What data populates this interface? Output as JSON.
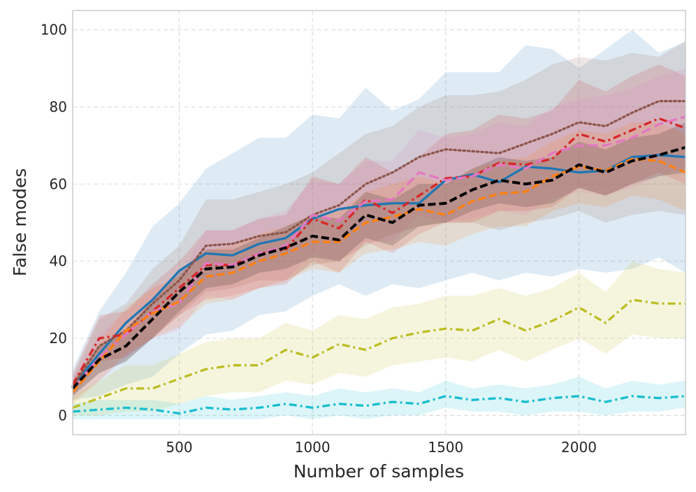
{
  "chart_data": {
    "type": "line",
    "title": "",
    "xlabel": "Number of samples",
    "ylabel": "False modes",
    "xlim": [
      100,
      2400
    ],
    "ylim": [
      -5,
      105
    ],
    "xticks": [
      500,
      1000,
      1500,
      2000
    ],
    "yticks": [
      0,
      20,
      40,
      60,
      80,
      100
    ],
    "xtick_labels": [
      "500",
      "1000",
      "1500",
      "2000"
    ],
    "ytick_labels": [
      "0",
      "20",
      "40",
      "60",
      "80",
      "100"
    ],
    "grid": true,
    "x": [
      100,
      200,
      300,
      400,
      500,
      600,
      700,
      800,
      900,
      1000,
      1100,
      1200,
      1300,
      1400,
      1500,
      1600,
      1700,
      1800,
      1900,
      2000,
      2100,
      2200,
      2300,
      2400
    ],
    "series": [
      {
        "name": "blue",
        "color": "#1f77b4",
        "dash": "solid",
        "values": [
          7.5,
          16,
          24,
          30,
          37.5,
          42,
          41.5,
          44.5,
          46,
          51,
          53.5,
          54.5,
          55,
          55,
          61,
          62.5,
          60.5,
          64.5,
          64,
          63,
          63.5,
          67,
          67.5,
          67
        ],
        "lower": [
          4,
          5,
          8,
          10,
          16,
          21,
          22,
          26,
          27,
          31,
          34,
          31,
          34,
          33,
          35,
          37,
          35,
          37,
          36,
          38,
          37,
          38,
          41,
          37
        ],
        "upper": [
          12,
          27,
          37,
          49,
          55,
          64,
          68,
          72,
          72,
          78,
          77,
          85,
          79,
          82,
          89,
          89,
          89,
          96,
          95,
          90,
          95,
          100,
          94,
          97
        ]
      },
      {
        "name": "brown",
        "color": "#8c564b",
        "dash": "dotted",
        "values": [
          7.5,
          18,
          22,
          29,
          35,
          44,
          44.5,
          46.5,
          47.5,
          52,
          54.5,
          60,
          63,
          67,
          69,
          68.5,
          68,
          70.5,
          73,
          76,
          75,
          78.5,
          81.5,
          81.5
        ],
        "lower": [
          5,
          11,
          14,
          20,
          26,
          32,
          33,
          35,
          35,
          39,
          40,
          44,
          47,
          49,
          50,
          50,
          48,
          50,
          51,
          53,
          50,
          52,
          53,
          52
        ],
        "upper": [
          10,
          25,
          29,
          38,
          44,
          56,
          56,
          58,
          60,
          63,
          68,
          73,
          75,
          80,
          83,
          83,
          84,
          87,
          91,
          93,
          92,
          94,
          93,
          97
        ]
      },
      {
        "name": "red",
        "color": "#d62728",
        "dash": "dashdot",
        "values": [
          8,
          20,
          21,
          27,
          33,
          39,
          39,
          42,
          43,
          51,
          48.5,
          56,
          52.5,
          57,
          61.5,
          62,
          65.5,
          65,
          66.5,
          73,
          71,
          74,
          77,
          74.5
        ],
        "lower": [
          5,
          14,
          15,
          20,
          26,
          30,
          31,
          33,
          34,
          40,
          37,
          45,
          42,
          47,
          50,
          50,
          53,
          53,
          54,
          59,
          57,
          60,
          63,
          60
        ],
        "upper": [
          11,
          26,
          27,
          34,
          40,
          48,
          48,
          51,
          52,
          62,
          60,
          67,
          63,
          67,
          73,
          74,
          78,
          77,
          79,
          87,
          84,
          88,
          91,
          88
        ]
      },
      {
        "name": "pink",
        "color": "#e377c2",
        "dash": "longdash",
        "values": [
          7,
          15,
          21,
          27,
          29,
          39.5,
          39,
          42,
          44,
          52,
          50.5,
          55.5,
          56,
          63,
          61,
          62,
          65,
          64,
          68,
          70,
          70,
          72,
          75.5,
          77.5
        ],
        "lower": [
          4,
          9,
          15,
          20,
          22,
          31,
          30,
          33,
          35,
          42,
          40,
          45,
          45,
          52,
          50,
          51,
          53,
          52,
          56,
          58,
          57,
          59,
          62,
          64
        ],
        "upper": [
          10,
          21,
          27,
          33,
          36,
          48,
          48,
          51,
          53,
          61,
          60,
          66,
          66,
          74,
          72,
          73,
          76,
          75,
          80,
          82,
          83,
          85,
          88,
          90
        ]
      },
      {
        "name": "orange",
        "color": "#ff7f0e",
        "dash": "dashed",
        "values": [
          6,
          14,
          22,
          26.5,
          29.5,
          36,
          37,
          40,
          42,
          45,
          45,
          50,
          51.5,
          53.5,
          52,
          55.5,
          57.5,
          58,
          62,
          64.5,
          63.5,
          66.5,
          66,
          63
        ],
        "lower": [
          3,
          9,
          16,
          20,
          23,
          29,
          30,
          33,
          35,
          38,
          37,
          42,
          43,
          45,
          44,
          47,
          49,
          49,
          53,
          55,
          54,
          57,
          56,
          53
        ],
        "upper": [
          9,
          19,
          28,
          33,
          36,
          43,
          44,
          47,
          49,
          52,
          53,
          58,
          60,
          62,
          60,
          64,
          66,
          67,
          71,
          74,
          73,
          76,
          76,
          73
        ]
      },
      {
        "name": "black",
        "color": "#000000",
        "dash": "dashed",
        "values": [
          7,
          14.5,
          18,
          25,
          32,
          38,
          38.5,
          41.5,
          43.5,
          46.5,
          45.5,
          52,
          50,
          54.5,
          55,
          58.5,
          61,
          60,
          61,
          65,
          63,
          66,
          67.5,
          69.5
        ],
        "lower": [
          5,
          11,
          14,
          20,
          27,
          33,
          34,
          37,
          38,
          41,
          40,
          46,
          44,
          49,
          50,
          53,
          55,
          54,
          55,
          59,
          57,
          60,
          62,
          63
        ],
        "upper": [
          9,
          18,
          22,
          30,
          37,
          43,
          43,
          46,
          49,
          52,
          51,
          58,
          56,
          60,
          60,
          64,
          67,
          66,
          67,
          71,
          69,
          72,
          73,
          76
        ]
      },
      {
        "name": "olive",
        "color": "#bcbd22",
        "dash": "dashdot",
        "values": [
          2,
          4.5,
          7,
          7,
          9.5,
          12,
          13,
          13,
          17,
          15,
          18.5,
          17,
          20,
          21.5,
          22.5,
          22,
          25,
          22,
          24.5,
          28,
          24,
          30,
          29,
          29
        ],
        "lower": [
          0,
          0,
          1,
          1,
          3,
          5,
          6,
          6,
          9,
          8,
          11,
          10,
          13,
          14,
          15,
          14,
          17,
          14,
          17,
          20,
          16,
          21,
          20,
          20
        ],
        "upper": [
          5,
          9,
          13,
          13,
          16,
          19,
          20,
          20,
          24,
          22,
          26,
          25,
          28,
          29,
          31,
          31,
          33,
          31,
          33,
          37,
          32,
          40,
          38,
          37
        ]
      },
      {
        "name": "cyan",
        "color": "#17becf",
        "dash": "dashdot",
        "values": [
          1,
          1.5,
          2,
          1.5,
          0.5,
          2,
          1.5,
          2,
          3,
          2,
          3,
          2.5,
          3.5,
          3,
          5,
          4,
          4.5,
          3.5,
          4.5,
          5,
          3.5,
          5,
          4.5,
          5
        ],
        "lower": [
          -1,
          -1,
          -1,
          -1,
          -1,
          -1,
          -1,
          -1,
          0,
          -1,
          0,
          -1,
          0,
          0,
          2,
          1,
          1,
          0,
          1,
          1,
          0,
          1,
          1,
          2
        ],
        "upper": [
          3,
          4,
          4,
          4,
          3,
          5,
          4,
          5,
          6,
          5,
          7,
          6,
          7,
          6,
          9,
          7,
          8,
          7,
          8,
          10,
          7,
          9,
          8,
          9
        ]
      }
    ]
  }
}
